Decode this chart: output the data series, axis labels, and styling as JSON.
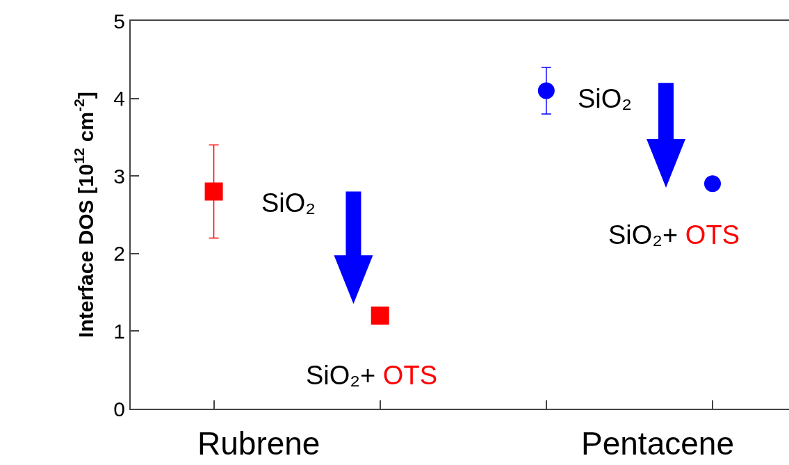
{
  "chart_data": {
    "type": "scatter",
    "ylabel": "Interface DOS [10$^{12}$ cm$^{-2}$]",
    "categories": [
      null,
      null,
      null,
      null
    ],
    "ylim": [
      0,
      5
    ],
    "yticks": [
      0,
      1,
      2,
      3,
      4,
      5
    ],
    "grid": false,
    "series": [
      {
        "color": "#ff0000",
        "marker": "square",
        "values": [
          2.8,
          1.2,
          null,
          null
        ],
        "errors": [
          [
            2.2,
            3.4
          ],
          null,
          null,
          null
        ]
      },
      {
        "color": "#0000ff",
        "marker": "circle",
        "values": [
          null,
          null,
          4.1,
          2.9
        ],
        "errors": [
          null,
          null,
          [
            3.8,
            4.4
          ],
          null
        ]
      }
    ],
    "annotations": [
      "Rubrene",
      "Pentacene",
      "SiO₂",
      "SiO₂+ OTS",
      "SiO₂",
      "SiO₂+ OTS"
    ]
  }
}
